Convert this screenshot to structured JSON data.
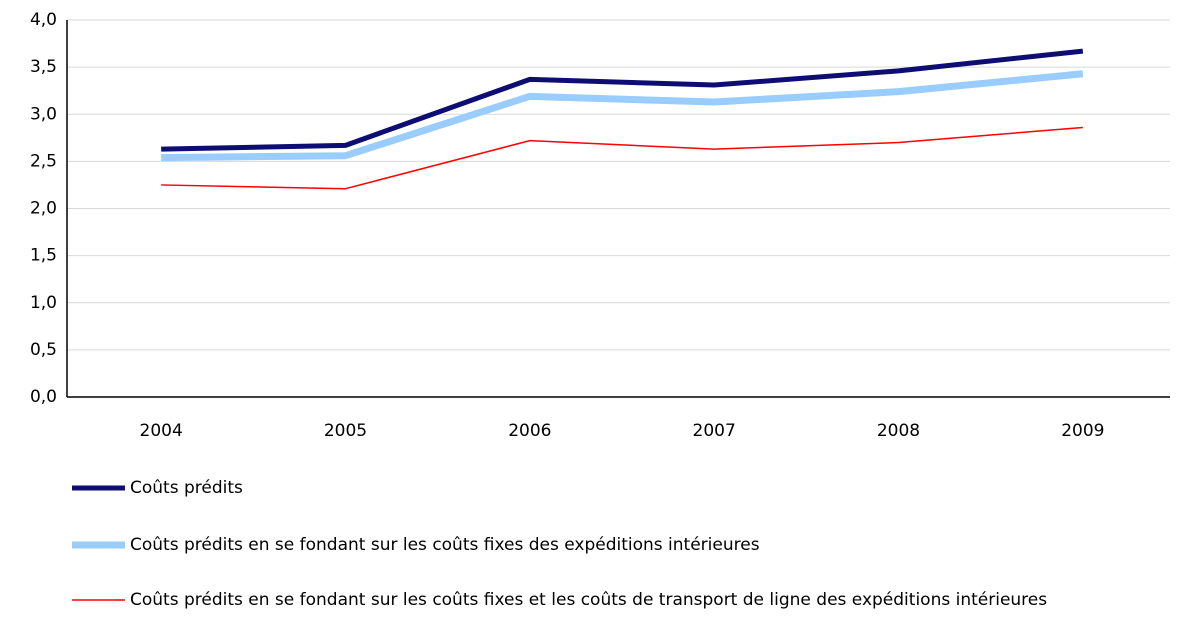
{
  "chart_data": {
    "type": "line",
    "categories": [
      "2004",
      "2005",
      "2006",
      "2007",
      "2008",
      "2009"
    ],
    "ylim": [
      0,
      4
    ],
    "yticks": [
      {
        "value": 0,
        "label": "0,0"
      },
      {
        "value": 0.5,
        "label": "0,5"
      },
      {
        "value": 1,
        "label": "1,0"
      },
      {
        "value": 1.5,
        "label": "1,5"
      },
      {
        "value": 2,
        "label": "2,0"
      },
      {
        "value": 2.5,
        "label": "2,5"
      },
      {
        "value": 3,
        "label": "3,0"
      },
      {
        "value": 3.5,
        "label": "3,5"
      },
      {
        "value": 4,
        "label": "4,0"
      }
    ],
    "grid": true,
    "series": [
      {
        "name": "Coûts prédits",
        "color": "#0d0d73",
        "values": [
          2.63,
          2.67,
          3.37,
          3.31,
          3.46,
          3.67
        ]
      },
      {
        "name": "Coûts prédits en se fondant sur les coûts fixes des expéditions intérieures",
        "color": "#99ccff",
        "values": [
          2.54,
          2.56,
          3.19,
          3.13,
          3.24,
          3.43
        ]
      },
      {
        "name": "Coûts prédits en se fondant sur les coûts fixes et les coûts de transport de ligne des expéditions intérieures",
        "color": "#ff0000",
        "values": [
          2.25,
          2.21,
          2.72,
          2.63,
          2.7,
          2.86
        ]
      }
    ]
  }
}
